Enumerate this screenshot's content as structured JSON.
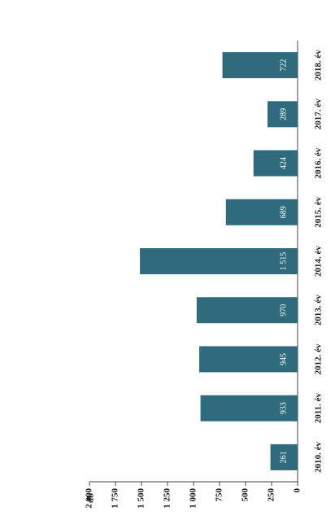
{
  "chart_data": {
    "type": "bar",
    "orientation": "horizontal-rotated",
    "y_label": "db",
    "categories": [
      "2010. év",
      "2011. év",
      "2012. év",
      "2013. év",
      "2014. év",
      "2015. év",
      "2016. év",
      "2017. év",
      "2018. év"
    ],
    "values": [
      261,
      933,
      945,
      970,
      1515,
      689,
      424,
      289,
      722
    ],
    "value_labels": [
      "261",
      "933",
      "945",
      "970",
      "1 515",
      "689",
      "424",
      "289",
      "722"
    ],
    "color": "#2f6b7c",
    "ylim": [
      0,
      2000
    ],
    "yticks": [
      0,
      250,
      500,
      750,
      {
        "value": 1000,
        "label": "1 000"
      },
      {
        "value": 1250,
        "label": "1 250"
      },
      {
        "value": 1500,
        "label": "1 500"
      },
      {
        "value": 1750,
        "label": "1 750"
      },
      {
        "value": 2000,
        "label": "2 000"
      }
    ]
  }
}
